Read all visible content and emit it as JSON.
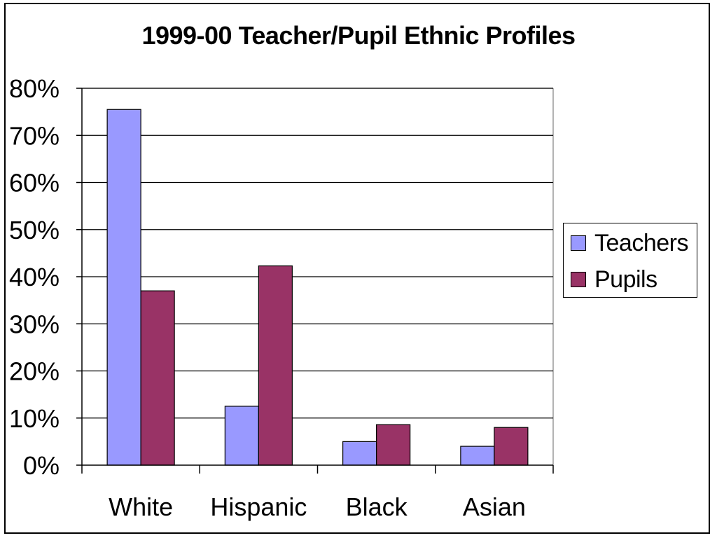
{
  "chart_data": {
    "type": "bar",
    "title": "1999-00 Teacher/Pupil Ethnic Profiles",
    "categories": [
      "White",
      "Hispanic",
      "Black",
      "Asian"
    ],
    "series": [
      {
        "name": "Teachers",
        "color": "#9999FF",
        "values": [
          75.5,
          12.5,
          5.0,
          4.0
        ]
      },
      {
        "name": "Pupils",
        "color": "#993366",
        "values": [
          37.0,
          42.3,
          8.6,
          8.0
        ]
      }
    ],
    "ylim": [
      0,
      80
    ],
    "yticks": [
      "0%",
      "10%",
      "20%",
      "30%",
      "40%",
      "50%",
      "60%",
      "70%",
      "80%"
    ],
    "grid": true,
    "legend_position": "right"
  }
}
